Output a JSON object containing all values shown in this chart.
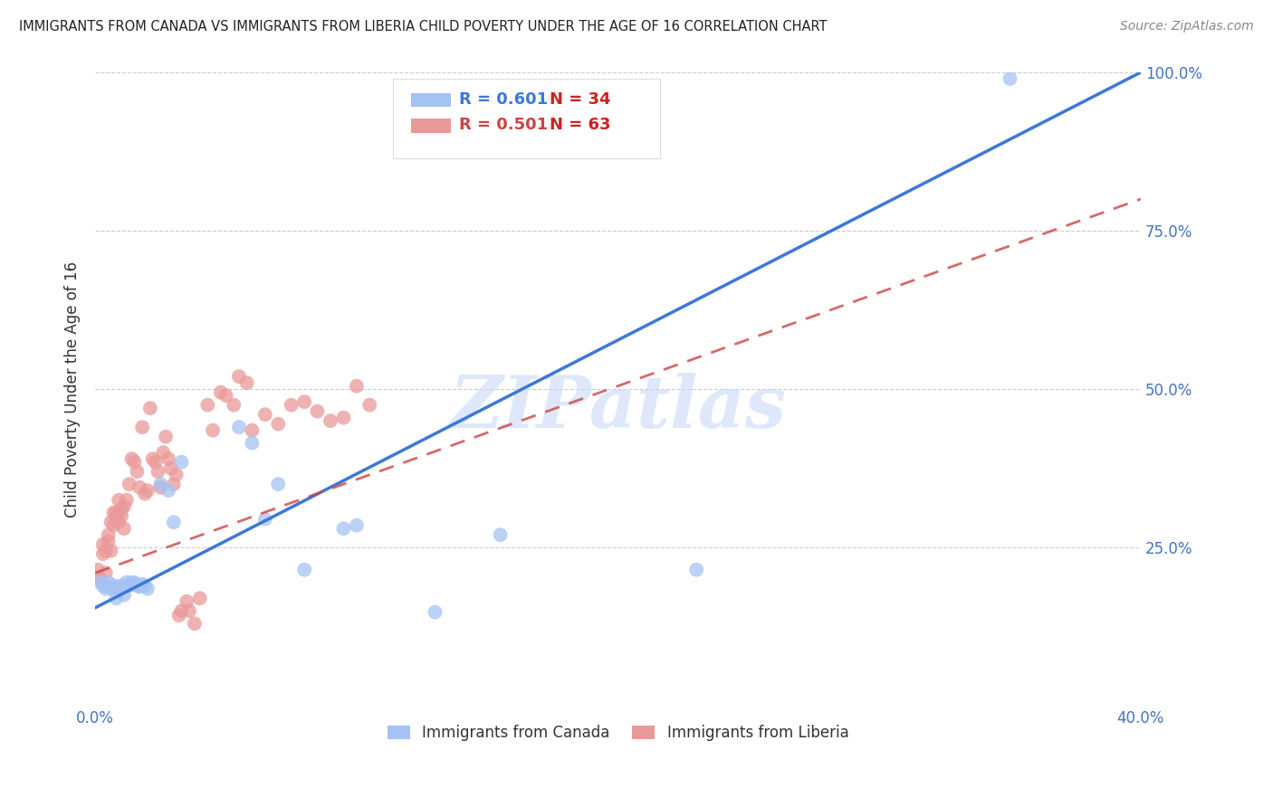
{
  "title": "IMMIGRANTS FROM CANADA VS IMMIGRANTS FROM LIBERIA CHILD POVERTY UNDER THE AGE OF 16 CORRELATION CHART",
  "source": "Source: ZipAtlas.com",
  "ylabel": "Child Poverty Under the Age of 16",
  "xlim": [
    0.0,
    0.4
  ],
  "ylim": [
    0.0,
    1.0
  ],
  "canada_R": 0.601,
  "canada_N": 34,
  "liberia_R": 0.501,
  "liberia_N": 63,
  "canada_color": "#a4c2f4",
  "liberia_color": "#ea9999",
  "canada_line_color": "#3c78d8",
  "liberia_line_color": "#cc4444",
  "watermark": "ZIPatlas",
  "watermark_color": "#c9daf8",
  "legend_canada": "Immigrants from Canada",
  "legend_liberia": "Immigrants from Liberia",
  "canada_x": [
    0.002,
    0.003,
    0.004,
    0.005,
    0.006,
    0.007,
    0.008,
    0.009,
    0.01,
    0.011,
    0.012,
    0.013,
    0.014,
    0.015,
    0.016,
    0.017,
    0.018,
    0.019,
    0.02,
    0.025,
    0.028,
    0.03,
    0.033,
    0.055,
    0.06,
    0.065,
    0.07,
    0.08,
    0.095,
    0.1,
    0.13,
    0.155,
    0.23,
    0.35
  ],
  "canada_y": [
    0.195,
    0.19,
    0.185,
    0.195,
    0.185,
    0.19,
    0.17,
    0.185,
    0.19,
    0.175,
    0.195,
    0.19,
    0.195,
    0.195,
    0.19,
    0.188,
    0.192,
    0.19,
    0.185,
    0.35,
    0.34,
    0.29,
    0.385,
    0.44,
    0.415,
    0.295,
    0.35,
    0.215,
    0.28,
    0.285,
    0.148,
    0.27,
    0.215,
    0.99
  ],
  "liberia_x": [
    0.001,
    0.002,
    0.003,
    0.003,
    0.004,
    0.004,
    0.005,
    0.005,
    0.006,
    0.006,
    0.007,
    0.007,
    0.008,
    0.008,
    0.009,
    0.009,
    0.01,
    0.01,
    0.011,
    0.011,
    0.012,
    0.013,
    0.014,
    0.015,
    0.016,
    0.017,
    0.018,
    0.019,
    0.02,
    0.021,
    0.022,
    0.023,
    0.024,
    0.025,
    0.026,
    0.027,
    0.028,
    0.029,
    0.03,
    0.031,
    0.032,
    0.033,
    0.035,
    0.036,
    0.038,
    0.04,
    0.043,
    0.045,
    0.048,
    0.05,
    0.053,
    0.055,
    0.058,
    0.06,
    0.065,
    0.07,
    0.075,
    0.08,
    0.085,
    0.09,
    0.095,
    0.1,
    0.105
  ],
  "liberia_y": [
    0.215,
    0.2,
    0.255,
    0.24,
    0.21,
    0.245,
    0.26,
    0.27,
    0.245,
    0.29,
    0.285,
    0.305,
    0.3,
    0.305,
    0.325,
    0.29,
    0.3,
    0.31,
    0.315,
    0.28,
    0.325,
    0.35,
    0.39,
    0.385,
    0.37,
    0.345,
    0.44,
    0.335,
    0.34,
    0.47,
    0.39,
    0.385,
    0.37,
    0.345,
    0.4,
    0.425,
    0.39,
    0.375,
    0.35,
    0.365,
    0.143,
    0.15,
    0.165,
    0.15,
    0.13,
    0.17,
    0.475,
    0.435,
    0.495,
    0.49,
    0.475,
    0.52,
    0.51,
    0.435,
    0.46,
    0.445,
    0.475,
    0.48,
    0.465,
    0.45,
    0.455,
    0.505,
    0.475
  ],
  "canada_line_x": [
    0.0,
    0.4
  ],
  "canada_line_y": [
    0.155,
    1.0
  ],
  "liberia_line_x": [
    0.0,
    0.4
  ],
  "liberia_line_y": [
    0.21,
    0.8
  ]
}
